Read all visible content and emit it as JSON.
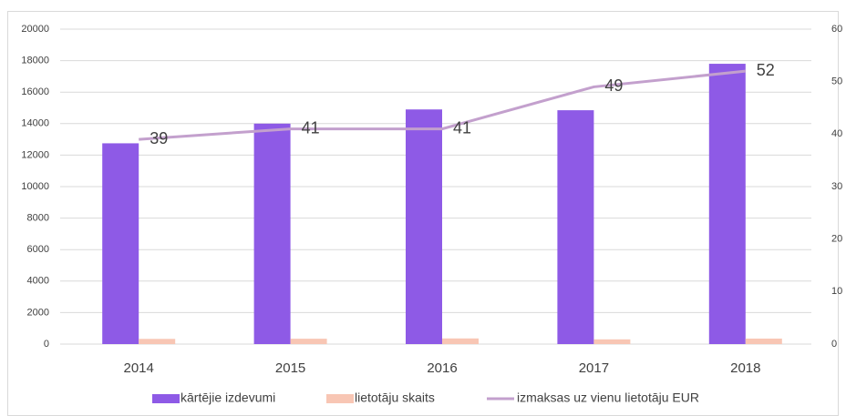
{
  "chart_data": {
    "type": "bar",
    "categories": [
      "2014",
      "2015",
      "2016",
      "2017",
      "2018"
    ],
    "series": [
      {
        "name": "kārtējie izdevumi",
        "type": "bar",
        "color": "#8e5ae6",
        "values": [
          12750,
          14000,
          14900,
          14850,
          17800
        ]
      },
      {
        "name": "lietotāju skaits",
        "type": "bar",
        "color": "#f8c6b4",
        "values": [
          330,
          340,
          360,
          300,
          350
        ]
      },
      {
        "name": "izmaksas uz vienu lietotāju EUR",
        "type": "line",
        "axis": "y2",
        "color": "#c3a0cd",
        "values": [
          39,
          41,
          41,
          49,
          52
        ]
      }
    ],
    "ylim": [
      0,
      20000
    ],
    "yticks": [
      0,
      2000,
      4000,
      6000,
      8000,
      10000,
      12000,
      14000,
      16000,
      18000,
      20000
    ],
    "y2lim": [
      0,
      60
    ],
    "y2ticks": [
      0,
      10,
      20,
      30,
      40,
      50,
      60
    ],
    "grid": true,
    "legend": "bottom"
  }
}
